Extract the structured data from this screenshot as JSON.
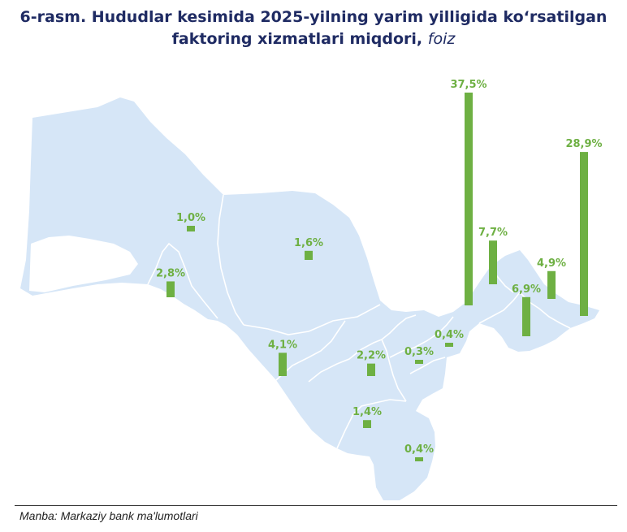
{
  "title": {
    "line1": "6-rasm. Hududlar kesimida 2025-yilning yarim yilligida ko‘rsatilgan",
    "line2": "faktoring xizmatlari miqdori,",
    "unit": "foiz"
  },
  "source": "Manba: Markaziy bank ma'lumotlari",
  "colors": {
    "bar": "#6eb043",
    "label": "#6eb043",
    "map": "#d6e6f7",
    "border": "#ffffff",
    "title": "#1f2b63"
  },
  "chart_data": {
    "type": "bar",
    "title": "6-rasm. Hududlar kesimida 2025-yilning yarim yilligida ko‘rsatilgan faktoring xizmatlari miqdori, foiz",
    "unit": "foiz",
    "ylim": [
      0,
      37.5
    ],
    "grid": false,
    "series": [
      {
        "values": [
          1.0,
          2.8,
          1.6,
          4.1,
          2.2,
          0.3,
          0.4,
          1.4,
          0.4,
          37.5,
          7.7,
          6.9,
          4.9,
          28.9
        ]
      }
    ],
    "labels": [
      "1,0%",
      "2,8%",
      "1,6%",
      "4,1%",
      "2,2%",
      "0,3%",
      "0,4%",
      "1,4%",
      "0,4%",
      "37,5%",
      "7,7%",
      "6,9%",
      "4,9%",
      "28,9%"
    ]
  }
}
